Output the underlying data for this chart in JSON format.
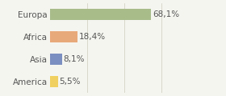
{
  "categories": [
    "Europa",
    "Africa",
    "Asia",
    "America"
  ],
  "values": [
    68.1,
    18.4,
    8.1,
    5.5
  ],
  "labels": [
    "68,1%",
    "18,4%",
    "8,1%",
    "5,5%"
  ],
  "bar_colors": [
    "#a8bc8a",
    "#e8a97a",
    "#7b8fc0",
    "#f0d060"
  ],
  "background_color": "#f5f5f0",
  "xlim": [
    0,
    100
  ],
  "bar_height": 0.5,
  "label_fontsize": 7.5,
  "tick_fontsize": 7.5,
  "figsize": [
    2.8,
    1.2
  ],
  "dpi": 100
}
